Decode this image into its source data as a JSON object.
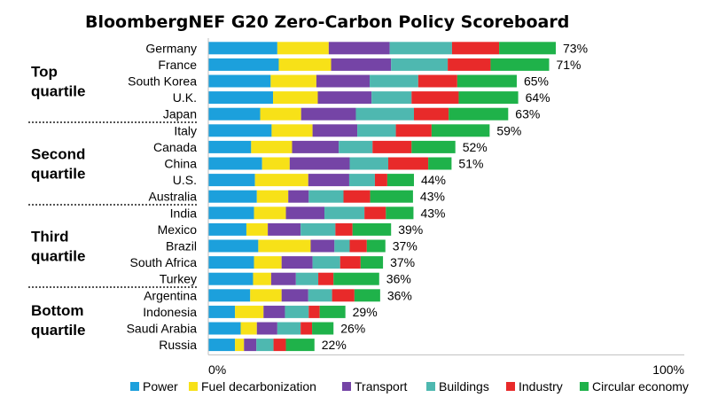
{
  "chart_data": {
    "type": "bar",
    "orientation": "horizontal",
    "stacked": true,
    "title": "BloombergNEF G20 Zero-Carbon Policy Scoreboard",
    "xlim": [
      0,
      100
    ],
    "x_ticks": [
      "0%",
      "100%"
    ],
    "grid": false,
    "legend_position": "bottom",
    "categories": [
      "Germany",
      "France",
      "South Korea",
      "U.K.",
      "Japan",
      "Italy",
      "Canada",
      "China",
      "U.S.",
      "Australia",
      "India",
      "Mexico",
      "Brazil",
      "South Africa",
      "Turkey",
      "Argentina",
      "Indonesia",
      "Saudi Arabia",
      "Russia"
    ],
    "totals": [
      "73%",
      "71%",
      "65%",
      "64%",
      "63%",
      "59%",
      "52%",
      "51%",
      "44%",
      "43%",
      "43%",
      "39%",
      "37%",
      "37%",
      "36%",
      "36%",
      "29%",
      "26%",
      "22%"
    ],
    "series": [
      {
        "name": "Power",
        "color": "#1ca0dc",
        "values": [
          14.5,
          14.8,
          13.1,
          13.6,
          10.9,
          13.3,
          9.0,
          11.3,
          9.8,
          10.2,
          9.6,
          8.0,
          10.5,
          9.6,
          9.4,
          8.8,
          5.6,
          6.8,
          5.6
        ]
      },
      {
        "name": "Fuel decarbonization",
        "color": "#f7e118",
        "values": [
          10.8,
          11.0,
          9.6,
          9.4,
          8.6,
          8.6,
          8.6,
          5.8,
          11.2,
          6.6,
          6.7,
          4.5,
          11.0,
          5.8,
          3.8,
          6.6,
          6.0,
          3.4,
          1.9
        ]
      },
      {
        "name": "Transport",
        "color": "#7544a6",
        "values": [
          12.8,
          12.6,
          11.2,
          11.3,
          11.5,
          9.4,
          9.8,
          12.6,
          8.6,
          4.3,
          8.1,
          6.9,
          5.0,
          6.5,
          5.2,
          5.6,
          4.5,
          4.3,
          2.6
        ]
      },
      {
        "name": "Buildings",
        "color": "#4eb8b0",
        "values": [
          13.1,
          11.9,
          10.2,
          8.4,
          12.2,
          8.1,
          7.1,
          8.1,
          5.4,
          7.3,
          8.4,
          7.3,
          3.2,
          5.8,
          4.7,
          5.0,
          5.0,
          4.9,
          3.6
        ]
      },
      {
        "name": "Industry",
        "color": "#e82a2a",
        "values": [
          9.9,
          9.0,
          8.2,
          9.9,
          7.3,
          7.5,
          8.2,
          8.4,
          2.6,
          5.6,
          4.5,
          3.6,
          3.6,
          4.3,
          3.2,
          4.7,
          2.3,
          2.4,
          2.6
        ]
      },
      {
        "name": "Circular economy",
        "color": "#1fb24a",
        "values": [
          11.9,
          12.3,
          12.5,
          12.5,
          12.5,
          12.2,
          9.2,
          4.9,
          5.6,
          9.0,
          5.8,
          8.1,
          3.9,
          4.7,
          9.6,
          5.4,
          5.4,
          4.5,
          6.0
        ]
      }
    ],
    "groups": [
      {
        "label_lines": [
          "Top",
          "quartile"
        ],
        "start": 0,
        "count": 5
      },
      {
        "label_lines": [
          "Second",
          "quartile"
        ],
        "start": 5,
        "count": 5
      },
      {
        "label_lines": [
          "Third",
          "quartile"
        ],
        "start": 10,
        "count": 5
      },
      {
        "label_lines": [
          "Bottom",
          "quartile"
        ],
        "start": 15,
        "count": 4
      }
    ]
  }
}
